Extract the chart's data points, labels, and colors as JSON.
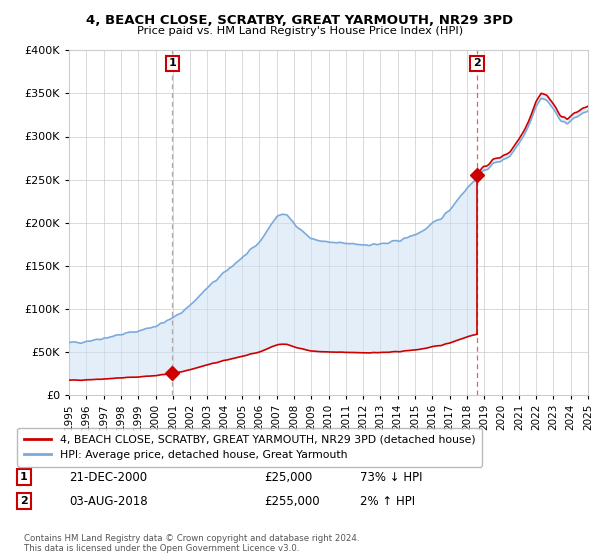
{
  "title": "4, BEACH CLOSE, SCRATBY, GREAT YARMOUTH, NR29 3PD",
  "subtitle": "Price paid vs. HM Land Registry's House Price Index (HPI)",
  "hpi_label": "HPI: Average price, detached house, Great Yarmouth",
  "property_label": "4, BEACH CLOSE, SCRATBY, GREAT YARMOUTH, NR29 3PD (detached house)",
  "purchase1_date": "21-DEC-2000",
  "purchase1_price": 25000,
  "purchase1_year": 2000.97,
  "purchase1_pct": "73% ↓ HPI",
  "purchase2_date": "03-AUG-2018",
  "purchase2_price": 255000,
  "purchase2_year": 2018.59,
  "purchase2_pct": "2% ↑ HPI",
  "ylim": [
    0,
    400000
  ],
  "yticks": [
    0,
    50000,
    100000,
    150000,
    200000,
    250000,
    300000,
    350000,
    400000
  ],
  "year_start": 1995,
  "year_end": 2025,
  "hpi_color": "#7aaadd",
  "property_color": "#cc0000",
  "shade_color": "#cce0f5",
  "grid_color": "#cccccc",
  "bg_color": "#ffffff",
  "footnote": "Contains HM Land Registry data © Crown copyright and database right 2024.\nThis data is licensed under the Open Government Licence v3.0."
}
